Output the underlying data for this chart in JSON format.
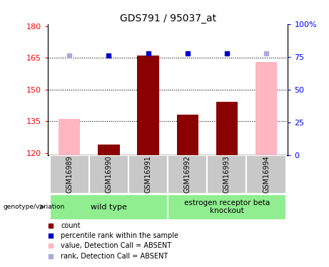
{
  "title": "GDS791 / 95037_at",
  "samples": [
    "GSM16989",
    "GSM16990",
    "GSM16991",
    "GSM16992",
    "GSM16993",
    "GSM16994"
  ],
  "ylim_left": [
    119,
    181
  ],
  "ylim_right": [
    0,
    100
  ],
  "yticks_left": [
    120,
    135,
    150,
    165,
    180
  ],
  "yticks_right": [
    0,
    25,
    50,
    75,
    100
  ],
  "ytick_labels_right": [
    "0",
    "25",
    "50",
    "75",
    "100%"
  ],
  "bar_values": {
    "GSM16989": {
      "pink": 136,
      "dark_red": null
    },
    "GSM16990": {
      "pink": null,
      "dark_red": 124
    },
    "GSM16991": {
      "pink": null,
      "dark_red": 166
    },
    "GSM16992": {
      "pink": null,
      "dark_red": 138
    },
    "GSM16993": {
      "pink": null,
      "dark_red": 144
    },
    "GSM16994": {
      "pink": 163,
      "dark_red": null
    }
  },
  "blue_square_values": {
    "GSM16989": {
      "dark_blue": null,
      "light_blue": 166
    },
    "GSM16990": {
      "dark_blue": 166,
      "light_blue": null
    },
    "GSM16991": {
      "dark_blue": 167,
      "light_blue": null
    },
    "GSM16992": {
      "dark_blue": 167,
      "light_blue": null
    },
    "GSM16993": {
      "dark_blue": 167,
      "light_blue": null
    },
    "GSM16994": {
      "dark_blue": null,
      "light_blue": 167
    }
  },
  "group1_label": "wild type",
  "group2_label": "estrogen receptor beta\nknockout",
  "group_color": "#90EE90",
  "bar_bottom": 119,
  "dark_red_color": "#8B0000",
  "pink_color": "#FFB6C1",
  "dark_blue_color": "#0000CD",
  "light_blue_color": "#AAAADD",
  "tick_area_color": "#C8C8C8",
  "dotted_yticks": [
    135,
    150,
    165
  ],
  "legend_items": [
    {
      "label": "count",
      "color": "#8B0000"
    },
    {
      "label": "percentile rank within the sample",
      "color": "#0000CD"
    },
    {
      "label": "value, Detection Call = ABSENT",
      "color": "#FFB6C1"
    },
    {
      "label": "rank, Detection Call = ABSENT",
      "color": "#AAAADD"
    }
  ]
}
